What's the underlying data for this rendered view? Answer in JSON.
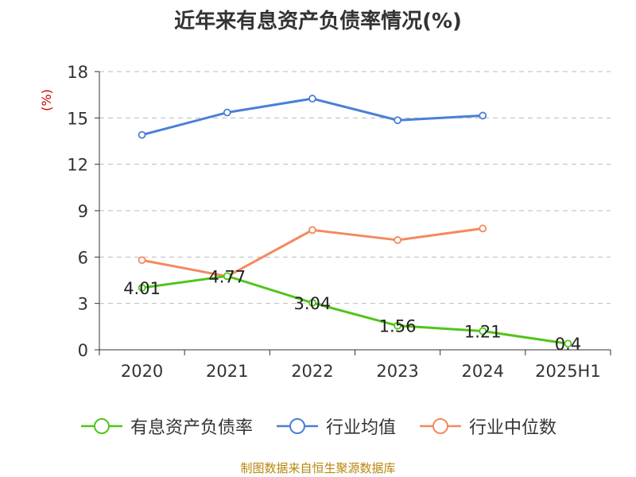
{
  "chart_data": {
    "type": "line",
    "title": "近年来有息资产负债率情况(%)",
    "ylabel": "(%)",
    "categories": [
      "2020",
      "2021",
      "2022",
      "2023",
      "2024",
      "2025H1"
    ],
    "yticks": [
      "0",
      "3",
      "6",
      "9",
      "12",
      "15",
      "18"
    ],
    "ylim": [
      0,
      18
    ],
    "grid": true,
    "legend_position": "bottom",
    "series": [
      {
        "name": "有息资产负债率",
        "color": "#52c41a",
        "values": [
          4.01,
          4.77,
          3.04,
          1.56,
          1.21,
          0.4
        ],
        "labels": [
          "4.01",
          "4.77",
          "3.04",
          "1.56",
          "1.21",
          "0.4"
        ]
      },
      {
        "name": "行业均值",
        "color": "#4a7fd6",
        "values": [
          13.9,
          15.35,
          16.25,
          14.85,
          15.15,
          null
        ]
      },
      {
        "name": "行业中位数",
        "color": "#f4895f",
        "values": [
          5.8,
          4.75,
          7.75,
          7.1,
          7.85,
          null
        ]
      }
    ],
    "source": "制图数据来自恒生聚源数据库"
  }
}
